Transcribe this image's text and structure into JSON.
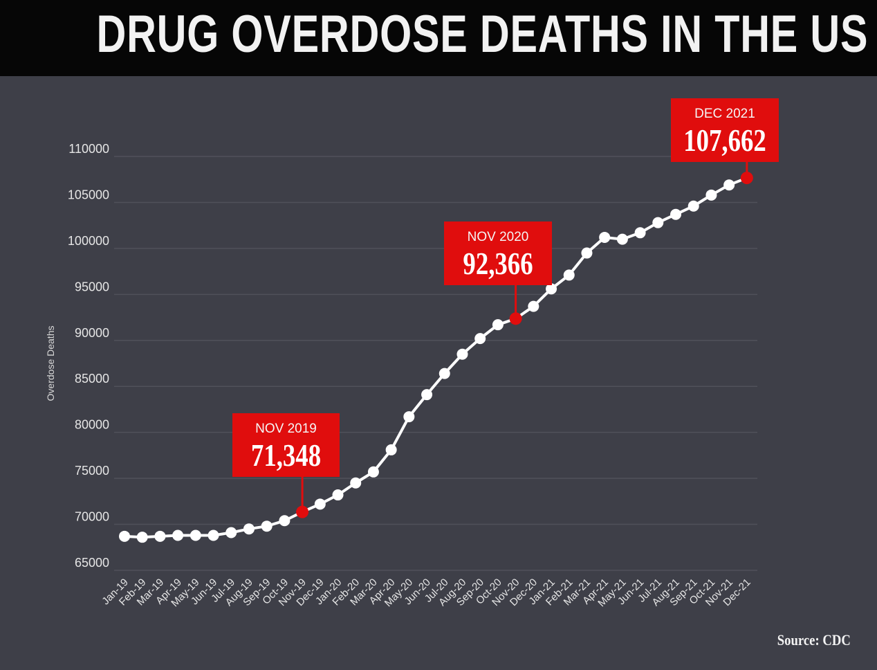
{
  "title": "DRUG OVERDOSE DEATHS IN THE US",
  "source": "Source: CDC",
  "chart_data": {
    "type": "line",
    "title": "DRUG OVERDOSE DEATHS IN THE US",
    "xlabel": "",
    "ylabel": "Overdose Deaths",
    "ylim": [
      65000,
      110000
    ],
    "yticks": [
      65000,
      70000,
      75000,
      80000,
      85000,
      90000,
      95000,
      100000,
      105000,
      110000
    ],
    "grid": true,
    "categories": [
      "Jan-19",
      "Feb-19",
      "Mar-19",
      "Apr-19",
      "May-19",
      "Jun-19",
      "Jul-19",
      "Aug-19",
      "Sep-19",
      "Oct-19",
      "Nov-19",
      "Dec-19",
      "Jan-20",
      "Feb-20",
      "Mar-20",
      "Apr-20",
      "May-20",
      "Jun-20",
      "Jul-20",
      "Aug-20",
      "Sep-20",
      "Oct-20",
      "Nov-20",
      "Dec-20",
      "Jan-21",
      "Feb-21",
      "Mar-21",
      "Apr-21",
      "May-21",
      "Jun-21",
      "Jul-21",
      "Aug-21",
      "Sep-21",
      "Oct-21",
      "Nov-21",
      "Dec-21"
    ],
    "series": [
      {
        "name": "Overdose Deaths",
        "values": [
          68700,
          68600,
          68700,
          68800,
          68800,
          68800,
          69100,
          69500,
          69800,
          70400,
          71348,
          72200,
          73200,
          74500,
          75700,
          78100,
          81700,
          84100,
          86400,
          88500,
          90200,
          91700,
          92366,
          93700,
          95600,
          97100,
          99500,
          101200,
          101000,
          101700,
          102800,
          103700,
          104600,
          105800,
          106900,
          107662
        ]
      }
    ],
    "annotations": [
      {
        "category": "Nov-19",
        "label": "NOV 2019",
        "value_text": "71,348"
      },
      {
        "category": "Nov-20",
        "label": "NOV 2020",
        "value_text": "92,366"
      },
      {
        "category": "Dec-21",
        "label": "DEC 2021",
        "value_text": "107,662"
      }
    ],
    "colors": {
      "line": "#ffffff",
      "highlight": "#e00d0d",
      "background": "#3e3f48",
      "grid": "#50515a"
    }
  }
}
